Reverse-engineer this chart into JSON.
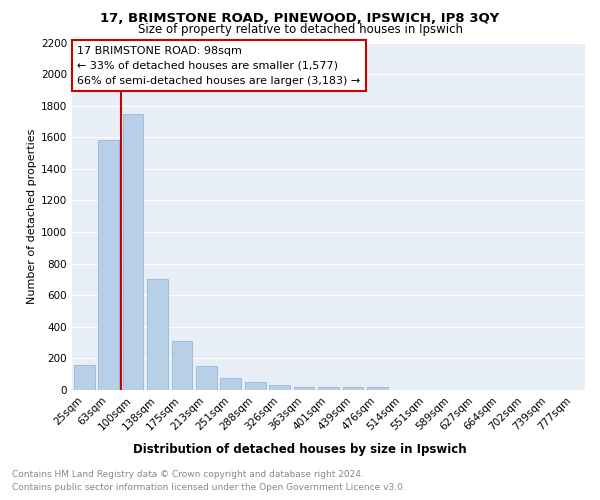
{
  "title1": "17, BRIMSTONE ROAD, PINEWOOD, IPSWICH, IP8 3QY",
  "title2": "Size of property relative to detached houses in Ipswich",
  "xlabel": "Distribution of detached houses by size in Ipswich",
  "ylabel": "Number of detached properties",
  "footer1": "Contains HM Land Registry data © Crown copyright and database right 2024.",
  "footer2": "Contains public sector information licensed under the Open Government Licence v3.0.",
  "annotation_title": "17 BRIMSTONE ROAD: 98sqm",
  "annotation_line1": "← 33% of detached houses are smaller (1,577)",
  "annotation_line2": "66% of semi-detached houses are larger (3,183) →",
  "bar_color": "#b8cfe8",
  "bar_edge_color": "#8aafd4",
  "vline_color": "#cc0000",
  "annotation_box_edgecolor": "#cc0000",
  "categories": [
    "25sqm",
    "63sqm",
    "100sqm",
    "138sqm",
    "175sqm",
    "213sqm",
    "251sqm",
    "288sqm",
    "326sqm",
    "363sqm",
    "401sqm",
    "439sqm",
    "476sqm",
    "514sqm",
    "551sqm",
    "589sqm",
    "627sqm",
    "664sqm",
    "702sqm",
    "739sqm",
    "777sqm"
  ],
  "values": [
    160,
    1580,
    1750,
    700,
    310,
    150,
    75,
    50,
    30,
    20,
    20,
    20,
    20,
    0,
    0,
    0,
    0,
    0,
    0,
    0,
    0
  ],
  "ylim": [
    0,
    2200
  ],
  "yticks": [
    0,
    200,
    400,
    600,
    800,
    1000,
    1200,
    1400,
    1600,
    1800,
    2000,
    2200
  ],
  "bg_color": "#e8eef5",
  "grid_color": "#ffffff",
  "title1_fontsize": 9.5,
  "title2_fontsize": 8.5,
  "xlabel_fontsize": 8.5,
  "ylabel_fontsize": 8,
  "tick_fontsize": 7.5,
  "annot_fontsize": 8,
  "footer_fontsize": 6.5,
  "footer_color": "#888888"
}
